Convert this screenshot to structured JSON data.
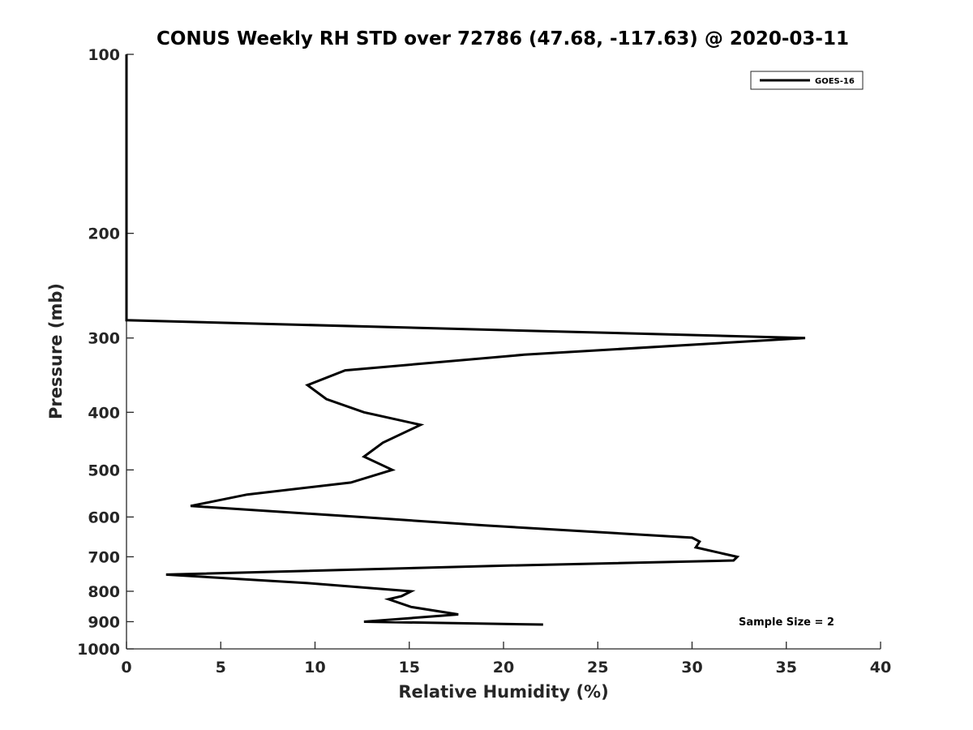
{
  "chart_data": {
    "type": "line",
    "title": "CONUS Weekly RH STD over 72786 (47.68, -117.63) @ 2020-03-11",
    "xlabel": "Relative Humidity (%)",
    "ylabel": "Pressure (mb)",
    "xlim": [
      0,
      40
    ],
    "ylim": [
      100,
      1000
    ],
    "y_scale": "log",
    "y_reversed": true,
    "x_ticks": [
      "0",
      "5",
      "10",
      "15",
      "20",
      "25",
      "30",
      "35",
      "40"
    ],
    "y_ticks": [
      "100",
      "200",
      "300",
      "400",
      "500",
      "600",
      "700",
      "800",
      "900",
      "1000"
    ],
    "grid": false,
    "legend_position": "top-right",
    "series": [
      {
        "name": "GOES-16",
        "color": "#000000",
        "points": [
          [
            0,
            100
          ],
          [
            0,
            150
          ],
          [
            0,
            200
          ],
          [
            0,
            250
          ],
          [
            0,
            280
          ],
          [
            36.0,
            300
          ],
          [
            21.1,
            320
          ],
          [
            11.6,
            340
          ],
          [
            9.6,
            360
          ],
          [
            10.6,
            380
          ],
          [
            12.6,
            400
          ],
          [
            15.6,
            420
          ],
          [
            13.6,
            450
          ],
          [
            12.6,
            475
          ],
          [
            14.1,
            500
          ],
          [
            11.9,
            525
          ],
          [
            6.4,
            550
          ],
          [
            3.4,
            575
          ],
          [
            12.4,
            600
          ],
          [
            19.0,
            620
          ],
          [
            30.0,
            650
          ],
          [
            30.4,
            660
          ],
          [
            30.2,
            675
          ],
          [
            32.4,
            700
          ],
          [
            32.2,
            710
          ],
          [
            19.6,
            725
          ],
          [
            2.1,
            750
          ],
          [
            9.6,
            775
          ],
          [
            15.1,
            800
          ],
          [
            14.6,
            815
          ],
          [
            13.9,
            825
          ],
          [
            15.1,
            850
          ],
          [
            17.6,
            875
          ],
          [
            12.6,
            900
          ],
          [
            22.1,
            910
          ]
        ]
      }
    ],
    "annotation": "Sample Size = 2"
  }
}
